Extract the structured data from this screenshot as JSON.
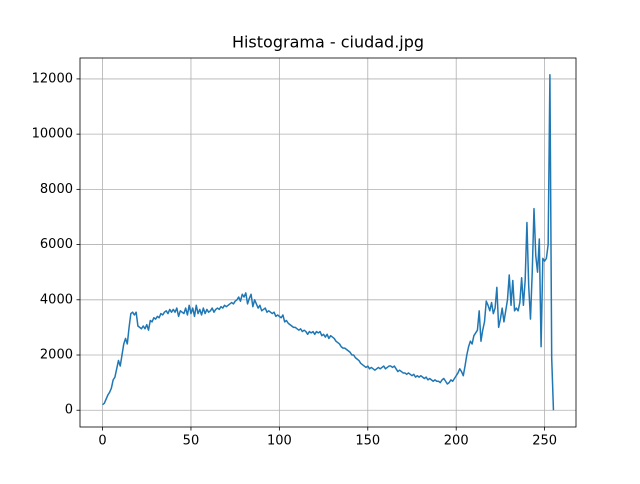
{
  "chart_data": {
    "type": "line",
    "title": "Histograma - ciudad.jpg",
    "x": [
      0,
      1,
      2,
      3,
      4,
      5,
      6,
      7,
      8,
      9,
      10,
      11,
      12,
      13,
      14,
      15,
      16,
      17,
      18,
      19,
      20,
      21,
      22,
      23,
      24,
      25,
      26,
      27,
      28,
      29,
      30,
      31,
      32,
      33,
      34,
      35,
      36,
      37,
      38,
      39,
      40,
      41,
      42,
      43,
      44,
      45,
      46,
      47,
      48,
      49,
      50,
      51,
      52,
      53,
      54,
      55,
      56,
      57,
      58,
      59,
      60,
      61,
      62,
      63,
      64,
      65,
      66,
      67,
      68,
      69,
      70,
      71,
      72,
      73,
      74,
      75,
      76,
      77,
      78,
      79,
      80,
      81,
      82,
      83,
      84,
      85,
      86,
      87,
      88,
      89,
      90,
      91,
      92,
      93,
      94,
      95,
      96,
      97,
      98,
      99,
      100,
      101,
      102,
      103,
      104,
      105,
      106,
      107,
      108,
      109,
      110,
      111,
      112,
      113,
      114,
      115,
      116,
      117,
      118,
      119,
      120,
      121,
      122,
      123,
      124,
      125,
      126,
      127,
      128,
      129,
      130,
      131,
      132,
      133,
      134,
      135,
      136,
      137,
      138,
      139,
      140,
      141,
      142,
      143,
      144,
      145,
      146,
      147,
      148,
      149,
      150,
      151,
      152,
      153,
      154,
      155,
      156,
      157,
      158,
      159,
      160,
      161,
      162,
      163,
      164,
      165,
      166,
      167,
      168,
      169,
      170,
      171,
      172,
      173,
      174,
      175,
      176,
      177,
      178,
      179,
      180,
      181,
      182,
      183,
      184,
      185,
      186,
      187,
      188,
      189,
      190,
      191,
      192,
      193,
      194,
      195,
      196,
      197,
      198,
      199,
      200,
      201,
      202,
      203,
      204,
      205,
      206,
      207,
      208,
      209,
      210,
      211,
      212,
      213,
      214,
      215,
      216,
      217,
      218,
      219,
      220,
      221,
      222,
      223,
      224,
      225,
      226,
      227,
      228,
      229,
      230,
      231,
      232,
      233,
      234,
      235,
      236,
      237,
      238,
      239,
      240,
      241,
      242,
      243,
      244,
      245,
      246,
      247,
      248,
      249,
      250,
      251,
      252,
      253,
      254,
      255
    ],
    "values": [
      200,
      250,
      400,
      550,
      650,
      800,
      1100,
      1200,
      1500,
      1800,
      1600,
      2000,
      2400,
      2600,
      2400,
      3000,
      3500,
      3550,
      3450,
      3550,
      3050,
      3000,
      2950,
      3050,
      2950,
      3100,
      2900,
      3250,
      3200,
      3350,
      3300,
      3400,
      3350,
      3500,
      3450,
      3550,
      3600,
      3500,
      3650,
      3550,
      3650,
      3550,
      3700,
      3400,
      3600,
      3550,
      3500,
      3700,
      3450,
      3800,
      3500,
      3700,
      3400,
      3800,
      3500,
      3650,
      3450,
      3700,
      3500,
      3650,
      3550,
      3600,
      3700,
      3550,
      3650,
      3700,
      3650,
      3750,
      3700,
      3800,
      3750,
      3800,
      3850,
      3900,
      3850,
      3950,
      4000,
      4100,
      3950,
      4200,
      4100,
      4250,
      3850,
      4050,
      4200,
      3750,
      4000,
      3850,
      3700,
      3800,
      3600,
      3650,
      3700,
      3550,
      3600,
      3550,
      3500,
      3550,
      3400,
      3450,
      3400,
      3350,
      3450,
      3200,
      3250,
      3150,
      3100,
      3050,
      3000,
      3000,
      2950,
      2900,
      2950,
      2850,
      2900,
      2850,
      2750,
      2850,
      2800,
      2850,
      2750,
      2850,
      2800,
      2850,
      2700,
      2750,
      2650,
      2750,
      2600,
      2700,
      2650,
      2600,
      2500,
      2450,
      2400,
      2300,
      2250,
      2250,
      2200,
      2150,
      2100,
      2000,
      2000,
      1900,
      1850,
      1800,
      1700,
      1650,
      1600,
      1550,
      1600,
      1500,
      1550,
      1500,
      1450,
      1500,
      1550,
      1500,
      1550,
      1600,
      1500,
      1550,
      1600,
      1600,
      1550,
      1600,
      1500,
      1400,
      1450,
      1400,
      1350,
      1350,
      1300,
      1350,
      1300,
      1250,
      1300,
      1200,
      1250,
      1200,
      1250,
      1200,
      1150,
      1200,
      1100,
      1150,
      1100,
      1050,
      1100,
      1050,
      1050,
      1000,
      1100,
      1150,
      1050,
      950,
      1000,
      1100,
      1050,
      1150,
      1250,
      1350,
      1500,
      1400,
      1250,
      1600,
      2000,
      2300,
      2500,
      2400,
      2700,
      2800,
      2900,
      3600,
      2500,
      2900,
      3200,
      3950,
      3800,
      3600,
      3900,
      3500,
      3700,
      4450,
      3000,
      3300,
      3700,
      3200,
      3600,
      4000,
      4900,
      3800,
      4700,
      3600,
      3700,
      3600,
      3900,
      4800,
      3800,
      4700,
      6800,
      4500,
      3300,
      5000,
      7300,
      5600,
      5000,
      6200,
      2300,
      5500,
      5400,
      5500,
      6000,
      12150,
      1900,
      0
    ],
    "color": "#1f77b4",
    "xlim": [
      -12.75,
      267.75
    ],
    "xticks": [
      0,
      50,
      100,
      150,
      200,
      250
    ],
    "ylim": [
      -607.5,
      12757.5
    ],
    "yticks": [
      0,
      2000,
      4000,
      6000,
      8000,
      10000,
      12000
    ],
    "grid": true
  }
}
